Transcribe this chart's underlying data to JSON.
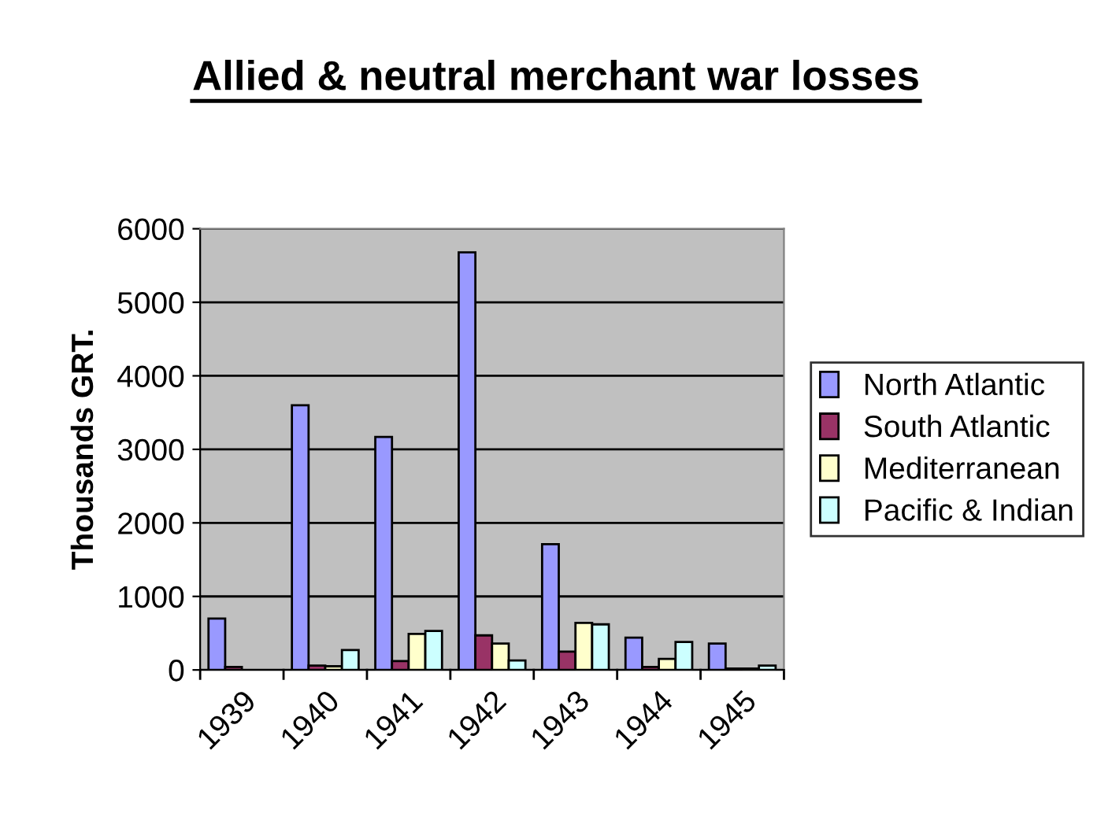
{
  "chart_data": {
    "type": "bar",
    "title": "Allied & neutral merchant war losses",
    "ylabel": "Thousands GRT.",
    "categories": [
      "1939",
      "1940",
      "1941",
      "1942",
      "1943",
      "1944",
      "1945"
    ],
    "series": [
      {
        "name": "North Atlantic",
        "color": "#9999ff",
        "values": [
          700,
          3600,
          3170,
          5680,
          1710,
          440,
          360
        ]
      },
      {
        "name": "South Atlantic",
        "color": "#993366",
        "values": [
          40,
          60,
          120,
          470,
          250,
          40,
          20
        ]
      },
      {
        "name": "Mediterranean",
        "color": "#ffffcc",
        "values": [
          null,
          50,
          490,
          360,
          640,
          150,
          20
        ]
      },
      {
        "name": "Pacific & Indian",
        "color": "#ccffff",
        "values": [
          null,
          270,
          530,
          130,
          620,
          380,
          60
        ]
      }
    ],
    "ylim": [
      0,
      6000
    ],
    "yticks": [
      0,
      1000,
      2000,
      3000,
      4000,
      5000,
      6000
    ],
    "grid": "y",
    "legend": "right"
  }
}
